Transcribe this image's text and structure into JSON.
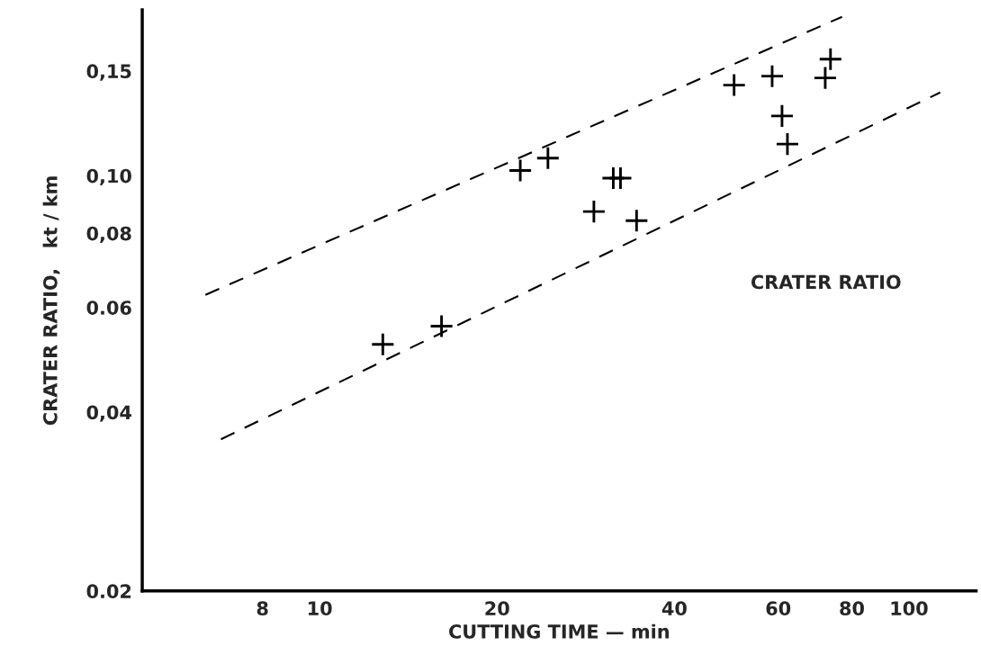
{
  "chart_data": {
    "type": "scatter",
    "xlabel": "CUTTING TIME — min",
    "ylabel": "CRATER RATIO,   kt / km",
    "log": "xy",
    "grid": false,
    "xlim": [
      5,
      130
    ],
    "ylim": [
      0.02,
      0.19
    ],
    "xticks": [
      8,
      10,
      20,
      40,
      60,
      80,
      100
    ],
    "yticks": [
      {
        "value": 0.02,
        "label": "0.02"
      },
      {
        "value": 0.04,
        "label": "0,04"
      },
      {
        "value": 0.06,
        "label": "0.06"
      },
      {
        "value": 0.08,
        "label": "0,08"
      },
      {
        "value": 0.1,
        "label": "0,10"
      },
      {
        "value": 0.15,
        "label": "0,15"
      }
    ],
    "annotations": [
      "CRATER RATIO"
    ],
    "series": [
      {
        "marker": "cross",
        "color": "#000000",
        "x": [
          12.8,
          16.1,
          21.9,
          24.4,
          29.2,
          31.5,
          32.4,
          34.5,
          50.5,
          58.6,
          60.9,
          62.2,
          72.1,
          73.6
        ],
        "values": [
          0.052,
          0.0558,
          0.102,
          0.107,
          0.087,
          0.099,
          0.099,
          0.084,
          0.142,
          0.147,
          0.126,
          0.113,
          0.146,
          0.157
        ]
      },
      {
        "type": "line",
        "color": "#000000",
        "line_style": "dashed",
        "x": [
          6.4,
          77
        ],
        "values": [
          0.063,
          0.185
        ]
      },
      {
        "type": "line",
        "color": "#000000",
        "line_style": "dashed",
        "x": [
          6.8,
          113
        ],
        "values": [
          0.036,
          0.138
        ]
      }
    ]
  }
}
